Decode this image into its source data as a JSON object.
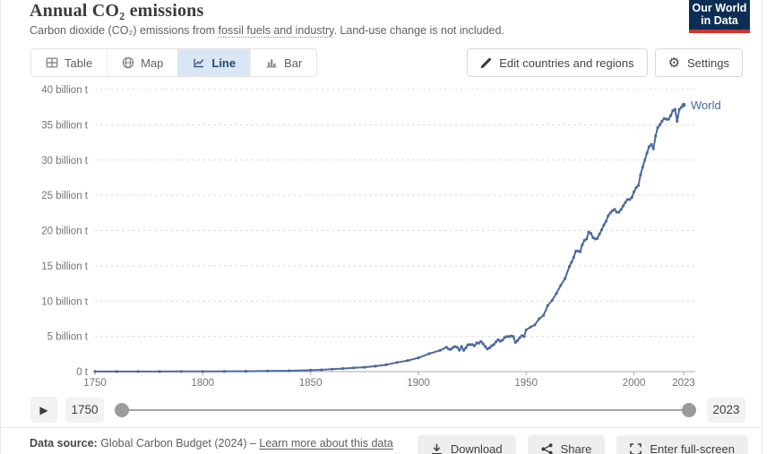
{
  "header": {
    "title": "Annual CO₂ emissions",
    "subtitle_prefix": "Carbon dioxide (CO₂) emissions from ",
    "subtitle_link": "fossil fuels and industry",
    "subtitle_suffix": ". Land-use change is not included.",
    "logo_line1": "Our World",
    "logo_line2": "in Data",
    "logo_bg": "#0d2e54",
    "logo_bar": "#d0342a"
  },
  "toolbar": {
    "tabs": [
      {
        "label": "Table",
        "active": false
      },
      {
        "label": "Map",
        "active": false
      },
      {
        "label": "Line",
        "active": true
      },
      {
        "label": "Bar",
        "active": false
      }
    ],
    "edit_button": "Edit countries and regions",
    "settings_button": "Settings",
    "active_tab_bg": "#d9e6f4"
  },
  "chart_data": {
    "type": "line",
    "title": "Annual CO₂ emissions",
    "unit": "billion t",
    "xlim": [
      1750,
      2023
    ],
    "ylim": [
      0,
      40
    ],
    "grid": "dashed",
    "legend_position": "end-of-line",
    "xticks": [
      1750,
      1800,
      1850,
      1900,
      1950,
      2000,
      2023
    ],
    "yticks": [
      {
        "value": 0,
        "label": "0 t"
      },
      {
        "value": 5,
        "label": "5 billion t"
      },
      {
        "value": 10,
        "label": "10 billion t"
      },
      {
        "value": 15,
        "label": "15 billion t"
      },
      {
        "value": 20,
        "label": "20 billion t"
      },
      {
        "value": 25,
        "label": "25 billion t"
      },
      {
        "value": 30,
        "label": "30 billion t"
      },
      {
        "value": 35,
        "label": "35 billion t"
      },
      {
        "value": 40,
        "label": "40 billion t"
      }
    ],
    "series": [
      {
        "name": "World",
        "color": "#4c6a9c",
        "label_color": "#3d6aa5",
        "points": [
          [
            1750,
            0.01
          ],
          [
            1760,
            0.011
          ],
          [
            1770,
            0.013
          ],
          [
            1780,
            0.015
          ],
          [
            1790,
            0.02
          ],
          [
            1800,
            0.03
          ],
          [
            1810,
            0.04
          ],
          [
            1820,
            0.054
          ],
          [
            1830,
            0.083
          ],
          [
            1840,
            0.12
          ],
          [
            1850,
            0.2
          ],
          [
            1855,
            0.26
          ],
          [
            1860,
            0.34
          ],
          [
            1865,
            0.43
          ],
          [
            1870,
            0.53
          ],
          [
            1875,
            0.62
          ],
          [
            1880,
            0.78
          ],
          [
            1885,
            0.96
          ],
          [
            1890,
            1.3
          ],
          [
            1895,
            1.56
          ],
          [
            1900,
            1.95
          ],
          [
            1905,
            2.54
          ],
          [
            1910,
            3.01
          ],
          [
            1913,
            3.46
          ],
          [
            1914,
            3.2
          ],
          [
            1915,
            3.16
          ],
          [
            1916,
            3.4
          ],
          [
            1917,
            3.56
          ],
          [
            1918,
            3.45
          ],
          [
            1919,
            3.05
          ],
          [
            1920,
            3.55
          ],
          [
            1921,
            3.02
          ],
          [
            1922,
            3.36
          ],
          [
            1923,
            3.81
          ],
          [
            1924,
            3.82
          ],
          [
            1925,
            3.83
          ],
          [
            1926,
            3.67
          ],
          [
            1927,
            4.06
          ],
          [
            1928,
            4.04
          ],
          [
            1929,
            4.27
          ],
          [
            1930,
            3.94
          ],
          [
            1931,
            3.55
          ],
          [
            1932,
            3.21
          ],
          [
            1933,
            3.36
          ],
          [
            1934,
            3.67
          ],
          [
            1935,
            3.83
          ],
          [
            1936,
            4.23
          ],
          [
            1937,
            4.53
          ],
          [
            1938,
            4.3
          ],
          [
            1939,
            4.47
          ],
          [
            1940,
            4.85
          ],
          [
            1941,
            4.97
          ],
          [
            1942,
            4.96
          ],
          [
            1943,
            5.06
          ],
          [
            1944,
            4.97
          ],
          [
            1945,
            4.14
          ],
          [
            1946,
            4.4
          ],
          [
            1947,
            4.81
          ],
          [
            1948,
            5.1
          ],
          [
            1949,
            4.98
          ],
          [
            1950,
            5.93
          ],
          [
            1952,
            6.31
          ],
          [
            1954,
            6.63
          ],
          [
            1956,
            7.51
          ],
          [
            1958,
            7.97
          ],
          [
            1960,
            9.39
          ],
          [
            1962,
            10.1
          ],
          [
            1964,
            11.1
          ],
          [
            1966,
            12.2
          ],
          [
            1968,
            13.2
          ],
          [
            1970,
            14.9
          ],
          [
            1971,
            15.5
          ],
          [
            1972,
            16.2
          ],
          [
            1973,
            17.1
          ],
          [
            1974,
            17.1
          ],
          [
            1975,
            17.0
          ],
          [
            1976,
            18.0
          ],
          [
            1977,
            18.6
          ],
          [
            1978,
            18.8
          ],
          [
            1979,
            19.8
          ],
          [
            1980,
            19.6
          ],
          [
            1981,
            19.0
          ],
          [
            1982,
            18.8
          ],
          [
            1983,
            18.9
          ],
          [
            1984,
            19.5
          ],
          [
            1985,
            20.1
          ],
          [
            1986,
            20.8
          ],
          [
            1987,
            21.3
          ],
          [
            1988,
            22.1
          ],
          [
            1989,
            22.5
          ],
          [
            1990,
            22.8
          ],
          [
            1991,
            23.0
          ],
          [
            1992,
            22.6
          ],
          [
            1993,
            22.6
          ],
          [
            1994,
            23.0
          ],
          [
            1995,
            23.5
          ],
          [
            1996,
            24.0
          ],
          [
            1997,
            24.4
          ],
          [
            1998,
            24.4
          ],
          [
            1999,
            24.7
          ],
          [
            2000,
            25.5
          ],
          [
            2001,
            26.1
          ],
          [
            2002,
            26.4
          ],
          [
            2003,
            27.9
          ],
          [
            2004,
            29.0
          ],
          [
            2005,
            30.0
          ],
          [
            2006,
            31.0
          ],
          [
            2007,
            31.9
          ],
          [
            2008,
            32.2
          ],
          [
            2009,
            31.6
          ],
          [
            2010,
            33.4
          ],
          [
            2011,
            34.6
          ],
          [
            2012,
            35.0
          ],
          [
            2013,
            35.5
          ],
          [
            2014,
            35.9
          ],
          [
            2015,
            35.8
          ],
          [
            2016,
            35.8
          ],
          [
            2017,
            36.3
          ],
          [
            2018,
            37.0
          ],
          [
            2019,
            37.2
          ],
          [
            2020,
            35.5
          ],
          [
            2021,
            37.2
          ],
          [
            2022,
            37.5
          ],
          [
            2023,
            37.8
          ]
        ]
      }
    ]
  },
  "timeline": {
    "start_year": "1750",
    "end_year": "2023",
    "play_icon": "▶"
  },
  "footer": {
    "source_label": "Data source:",
    "source_text": " Global Carbon Budget (2024) – ",
    "source_link": "Learn more about this data",
    "download_button": "Download",
    "share_button": "Share",
    "fullscreen_button": "Enter full-screen"
  }
}
